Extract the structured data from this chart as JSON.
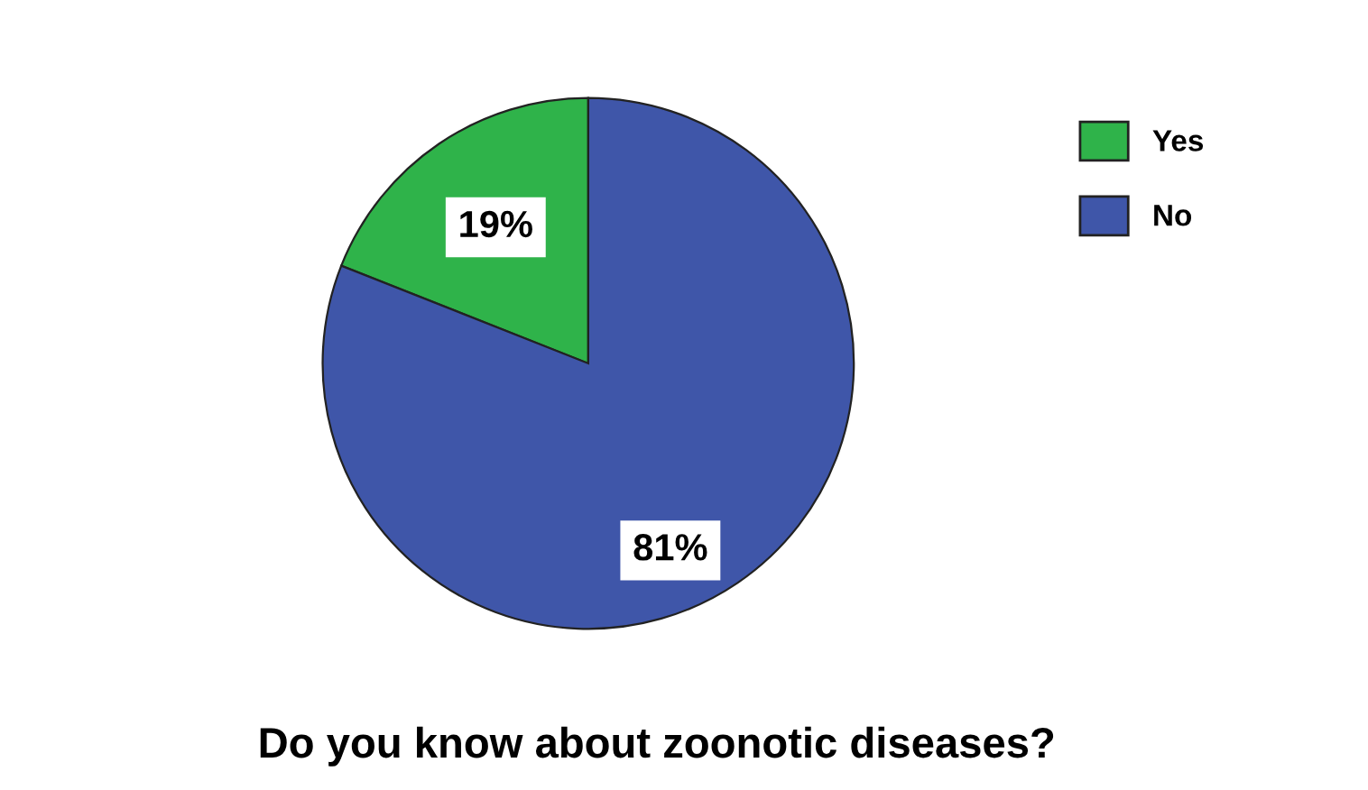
{
  "chart_data": {
    "type": "pie",
    "title": "Do you know about zoonotic diseases?",
    "categories": [
      "Yes",
      "No"
    ],
    "values": [
      19,
      81
    ],
    "colors": [
      "#2fb34a",
      "#3f56a9"
    ],
    "value_labels": [
      "19%",
      "81%"
    ],
    "legend": "top right"
  }
}
